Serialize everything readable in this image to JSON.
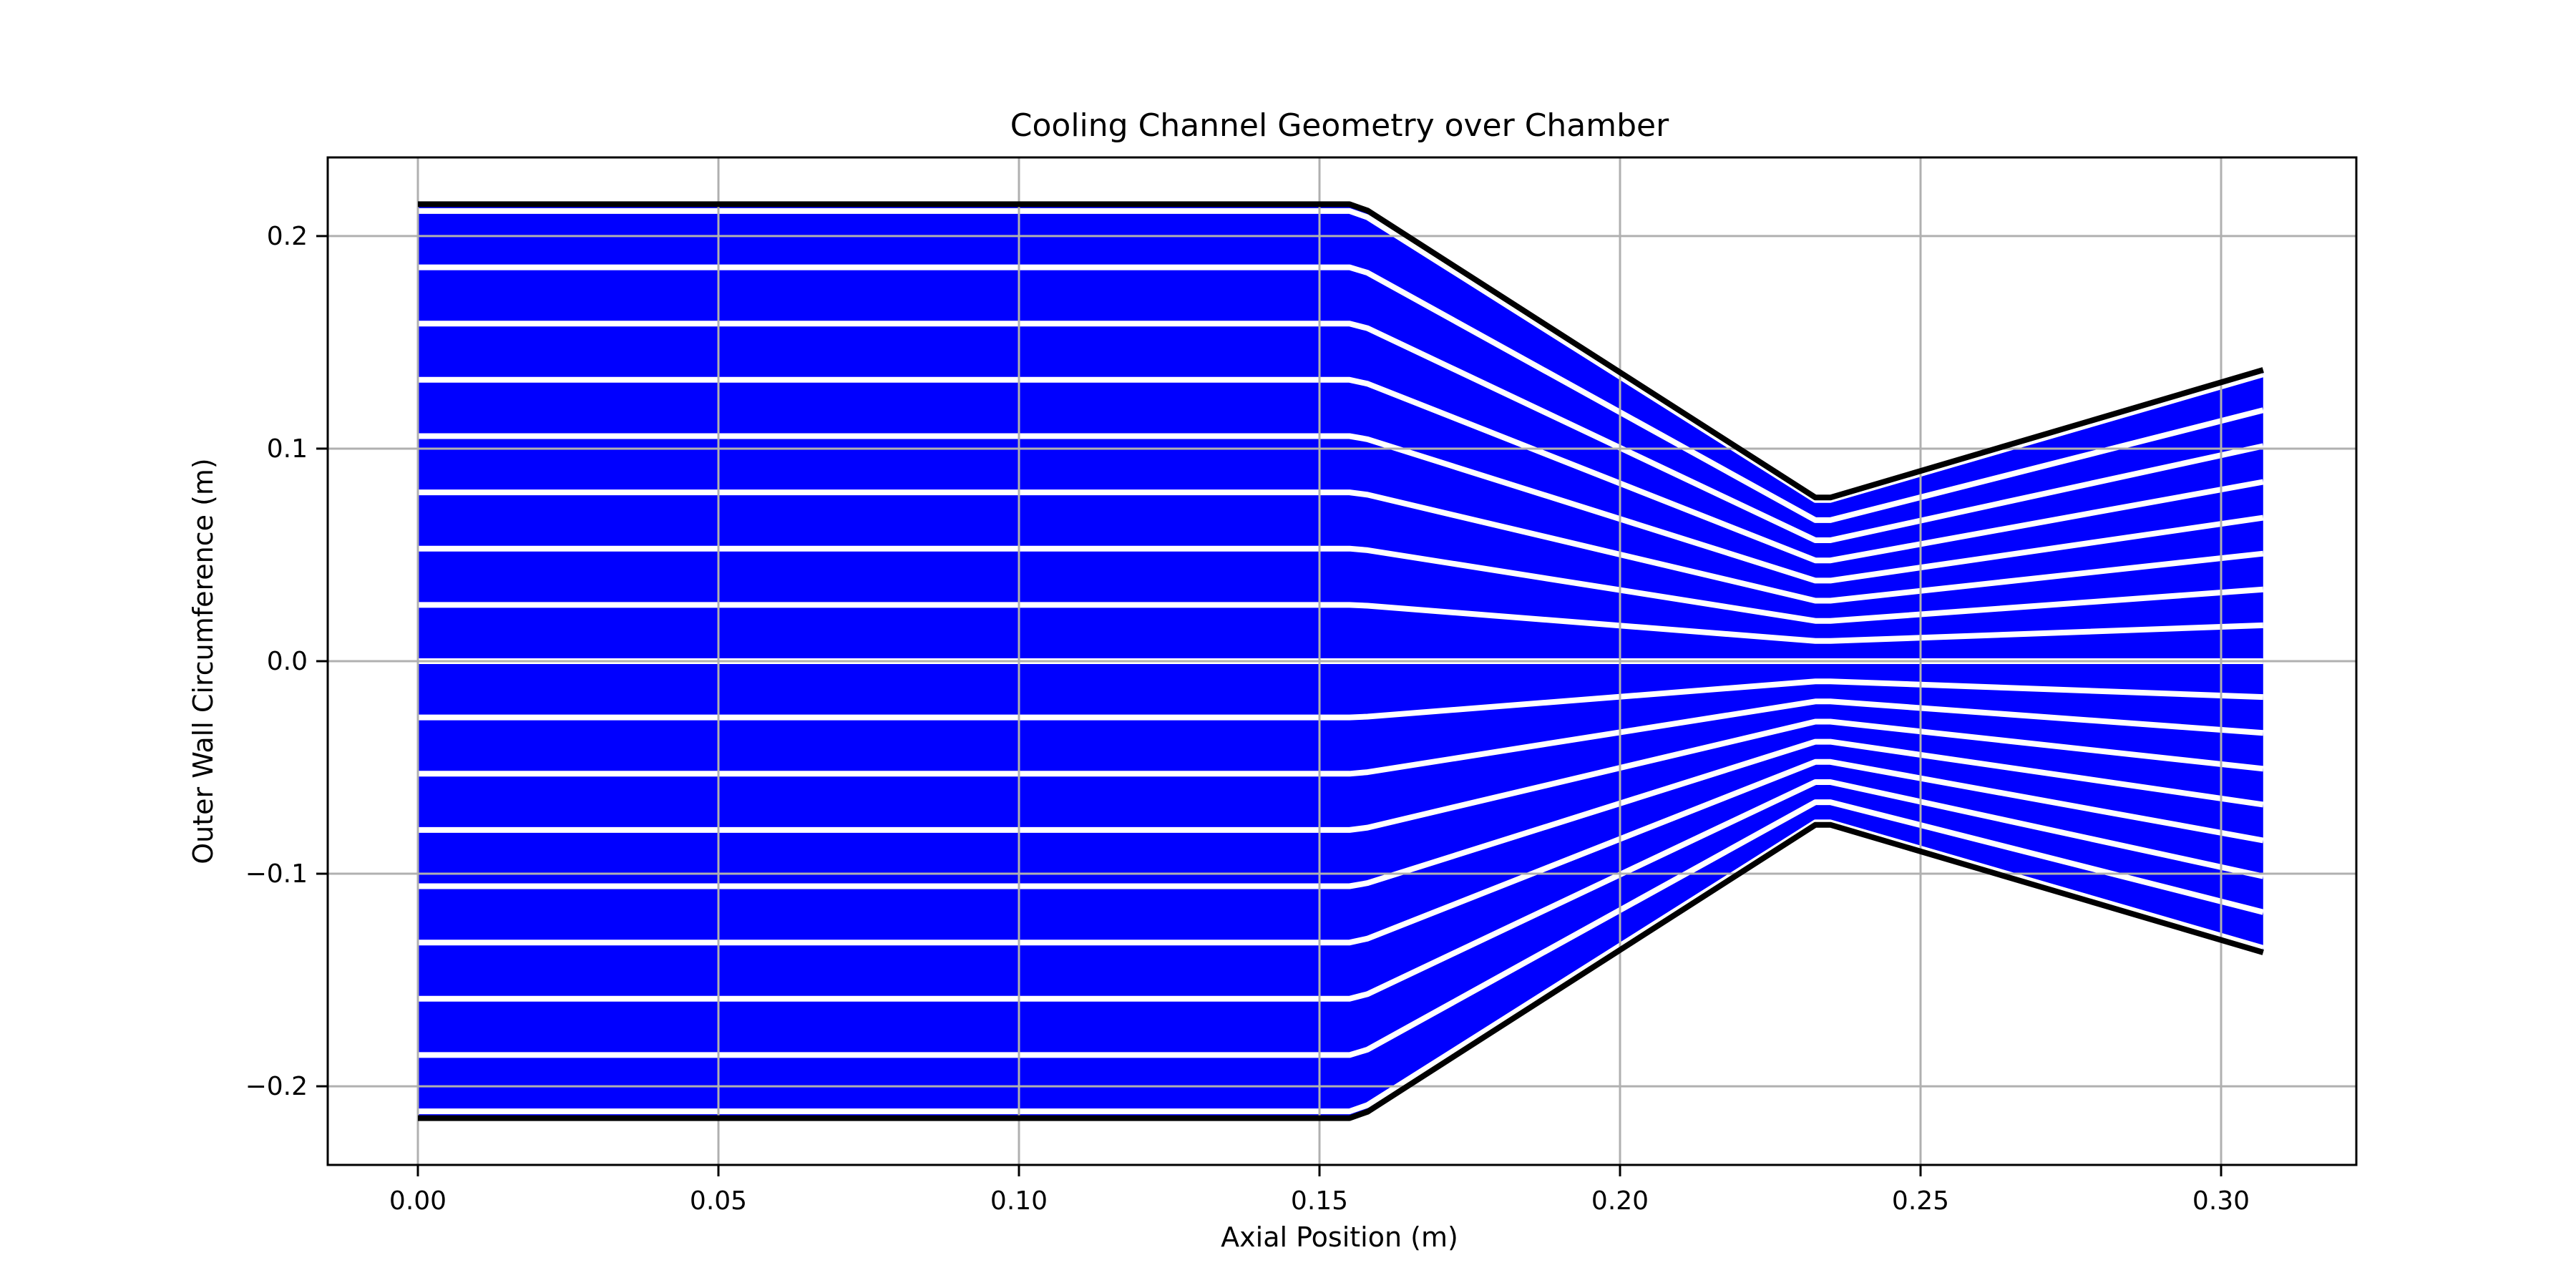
{
  "chart_data": {
    "type": "line",
    "title": "Cooling Channel Geometry over Chamber",
    "xlabel": "Axial Position (m)",
    "ylabel": "Outer Wall Circumference (m)",
    "xlim": [
      -0.015,
      0.3225
    ],
    "ylim": [
      -0.237,
      0.237
    ],
    "x_ticks": [
      0.0,
      0.05,
      0.1,
      0.15,
      0.2,
      0.25,
      0.3
    ],
    "x_tick_labels": [
      "0.00",
      "0.05",
      "0.10",
      "0.15",
      "0.20",
      "0.25",
      "0.30"
    ],
    "y_ticks": [
      -0.2,
      -0.1,
      0.0,
      0.1,
      0.2
    ],
    "y_tick_labels": [
      "−0.2",
      "−0.1",
      "0.0",
      "0.1",
      "0.2"
    ],
    "grid": true,
    "channel_count": 16,
    "wall_profile": {
      "x": [
        0.0,
        0.155,
        0.158,
        0.2325,
        0.235,
        0.307
      ],
      "y": [
        0.215,
        0.215,
        0.212,
        0.077,
        0.077,
        0.137
      ]
    },
    "colors": {
      "channel_fill": "#0000ff",
      "channel_divider": "#ffffff",
      "wall_line": "#000000",
      "grid": "#b0b0b0"
    }
  }
}
